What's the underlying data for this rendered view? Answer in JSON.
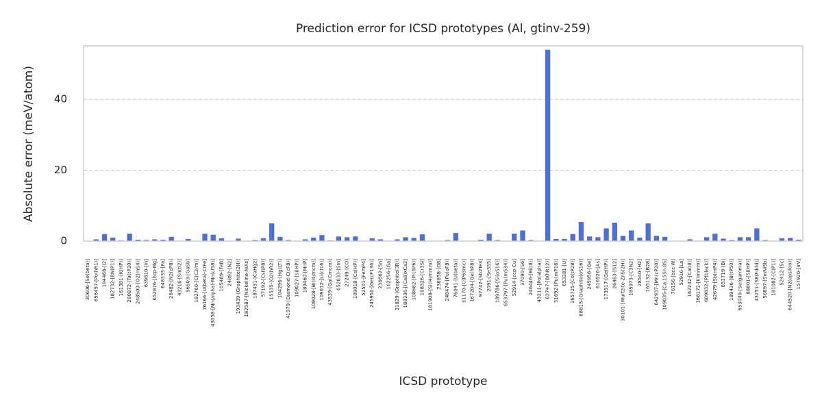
{
  "chart_data": {
    "type": "bar",
    "title": "Prediction error for ICSD prototypes (Al, gtinv-259)",
    "xlabel": "ICSD prototype",
    "ylabel": "Absolute error (meV/atom)",
    "categories": [
      "30606-[Se(beta)]",
      "656457-[Po(hR1)]",
      "194468-[I2]",
      "182732-[BN(P1)]",
      "161381-[K(HP)]",
      "280872-[Ta(tP30)]",
      "248500-[O2(mS4)]",
      "639810-[In]",
      "652876-[hcp-Mg]",
      "648333-[Pa]",
      "26482-[N2(cP8)]",
      "43216-[Sn(tI2)]",
      "56503-[GaSb]",
      "182760-[C(C2/m)]",
      "76166-[U(beta)-CrFe]",
      "43058-[Mn(alpha)-Mn(cI58)]",
      "105489-[FeB]",
      "24892-[N2]",
      "193439-[Graphite(2H)]",
      "182587-[Nickeline-NiAs]",
      "187431-[CaHg2]",
      "57192-[Cs(tP8)]",
      "15535-[O2(hR2)]",
      "104296-[Hg(LT)]",
      "41979-[Diamond-C(cF8)]",
      "109027-[Si(HP)]",
      "189460-[MnP]",
      "109028-[Bi(I4/mcm)]",
      "109012-[Li(cI16)]",
      "43539-[Ga(Cmcm)]",
      "652633-[Sm]",
      "27249-[CO]",
      "109018-[Cs(HP)]",
      "52501-[FemP4]",
      "245950-[Ge(cF136)]",
      "236662-[Sn]",
      "162256-[Ga]",
      "31829-[Graphite(3R)]",
      "188336-[(Ca8)xCa2]",
      "108682-[Pr(hP6)]",
      "108326-[Cr3Si]",
      "181908-[Si(I4/mmm)]",
      "236858-[O8]",
      "248474-[Pu(oF8)]",
      "76041-[U(beta)]",
      "31170-[C(P63mc)]",
      "167204-[Ge(hP8)]",
      "97742-[Sb2Te3]",
      "2091-[Se3S5]",
      "189786-[Si(oS16)]",
      "653797-[Pu(mS34)]",
      "52914-[ccp-Cu]",
      "37090-[S6]",
      "246446-[Bi(III)]",
      "43211-[Po(alpha)]",
      "62747-[B(hR12)]",
      "31692-[Pu(mP16)]",
      "653381-[U]",
      "165725-[Co(tP28)]",
      "88815-[Graphite(oS16)]",
      "245956-[Ge]",
      "616526-[As]",
      "173517-[Ge(HP)]",
      "26463-[S12]",
      "30101-[Wurtzite-ZnS(2H)]",
      "185973-[C3N2]",
      "28540-[H2]",
      "165132-[B28]",
      "642937-[Mn(cP20)]",
      "109035-[Ca.15Sn.85]",
      "76156-[bcc-W]",
      "52916-[La]",
      "162242-[Ca(III)]",
      "168172-[I(Immm)]",
      "609832-[P(black)]",
      "42679-[Sb(mP4)]",
      "653719-[Bi]",
      "189436-[B(tP50)]",
      "653049-[Se(gamma)]",
      "88801-[Si(HP)]",
      "43251-[S8(Fddd)]",
      "56897-[SmNiSb]",
      "181082-[C(P1)]",
      "52412-[Sc]",
      "644520-[N2(epsilon)]",
      "157920-[IrV]"
    ],
    "values": [
      0.1,
      0.5,
      2.0,
      1.0,
      0.2,
      2.1,
      0.4,
      0.3,
      0.5,
      0.4,
      1.2,
      0.1,
      0.6,
      0.1,
      2.1,
      1.8,
      0.8,
      0.1,
      0.7,
      0.1,
      0.3,
      0.8,
      5.0,
      1.2,
      0.3,
      0.1,
      0.5,
      1.0,
      1.7,
      0.2,
      1.3,
      1.1,
      1.3,
      0.1,
      0.8,
      0.5,
      0.1,
      0.5,
      1.1,
      0.9,
      1.9,
      0.1,
      0.1,
      0.3,
      2.3,
      0.1,
      0.1,
      0.4,
      2.1,
      0.3,
      0.1,
      2.1,
      3.0,
      0.3,
      0.1,
      54.0,
      0.6,
      0.6,
      2.0,
      5.4,
      1.3,
      1.1,
      3.6,
      5.2,
      1.5,
      3.0,
      1.0,
      5.0,
      1.5,
      1.2,
      0.1,
      0.1,
      0.5,
      0.1,
      1.1,
      2.1,
      0.7,
      0.3,
      1.1,
      1.1,
      3.6,
      0.3,
      0.1,
      0.8,
      0.9,
      0.4
    ],
    "color": "#4e6fd6",
    "ylim": [
      0,
      55.1
    ],
    "yticks": [
      0,
      20,
      40
    ],
    "grid": true
  }
}
